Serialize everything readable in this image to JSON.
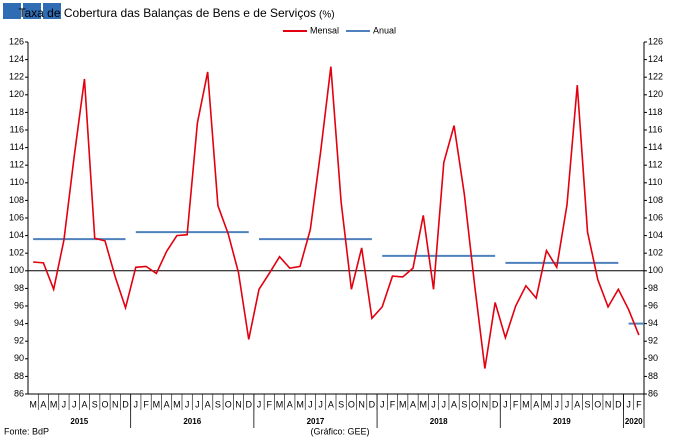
{
  "chart_data": {
    "type": "line",
    "title": "Taxa de Cobertura das Balanças de Bens e de Serviços",
    "unit": "(%)",
    "series": [
      {
        "name": "Mensal",
        "color": "#e3000f"
      },
      {
        "name": "Anual",
        "color": "#4f81bd"
      }
    ],
    "years": [
      {
        "label": "2015",
        "months": [
          "M",
          "A",
          "M",
          "J",
          "J",
          "A",
          "S",
          "O",
          "N",
          "D"
        ],
        "mensal": [
          101.0,
          100.9,
          97.9,
          103.5,
          113.0,
          121.8,
          103.7,
          103.4,
          99.3,
          95.8
        ],
        "anual": 103.6
      },
      {
        "label": "2016",
        "months": [
          "J",
          "F",
          "M",
          "A",
          "M",
          "J",
          "J",
          "A",
          "S",
          "O",
          "N",
          "D"
        ],
        "mensal": [
          100.4,
          100.5,
          99.7,
          102.2,
          104.0,
          104.1,
          116.8,
          122.6,
          107.4,
          104.2,
          99.8,
          92.2
        ],
        "anual": 104.4
      },
      {
        "label": "2017",
        "months": [
          "J",
          "F",
          "M",
          "A",
          "M",
          "J",
          "J",
          "A",
          "S",
          "O",
          "N",
          "D"
        ],
        "mensal": [
          97.9,
          99.7,
          101.6,
          100.3,
          100.5,
          104.7,
          113.5,
          123.2,
          107.8,
          97.9,
          102.6,
          94.6
        ],
        "anual": 103.6
      },
      {
        "label": "2018",
        "months": [
          "J",
          "F",
          "M",
          "A",
          "M",
          "J",
          "J",
          "A",
          "S",
          "O",
          "N",
          "D"
        ],
        "mensal": [
          95.9,
          99.4,
          99.3,
          100.3,
          106.3,
          97.9,
          112.3,
          116.5,
          108.7,
          98.4,
          88.9,
          96.4
        ],
        "anual": 101.7
      },
      {
        "label": "2019",
        "months": [
          "J",
          "F",
          "M",
          "A",
          "M",
          "J",
          "J",
          "A",
          "S",
          "O",
          "N",
          "D"
        ],
        "mensal": [
          92.4,
          96.0,
          98.3,
          96.9,
          102.3,
          100.4,
          107.5,
          121.1,
          104.4,
          99.0,
          95.9,
          97.9
        ],
        "anual": 100.9
      },
      {
        "label": "2020",
        "months": [
          "J",
          "F"
        ],
        "mensal": [
          95.6,
          92.7
        ],
        "anual": 94.0
      }
    ],
    "ylim": [
      86,
      126
    ],
    "yticks": [
      86,
      88,
      90,
      92,
      94,
      96,
      98,
      100,
      102,
      104,
      106,
      108,
      110,
      112,
      114,
      116,
      118,
      120,
      122,
      124,
      126
    ],
    "ref_line": 100,
    "source": "Fonte: BdP",
    "credit": "(Gráfico: GEE)"
  }
}
